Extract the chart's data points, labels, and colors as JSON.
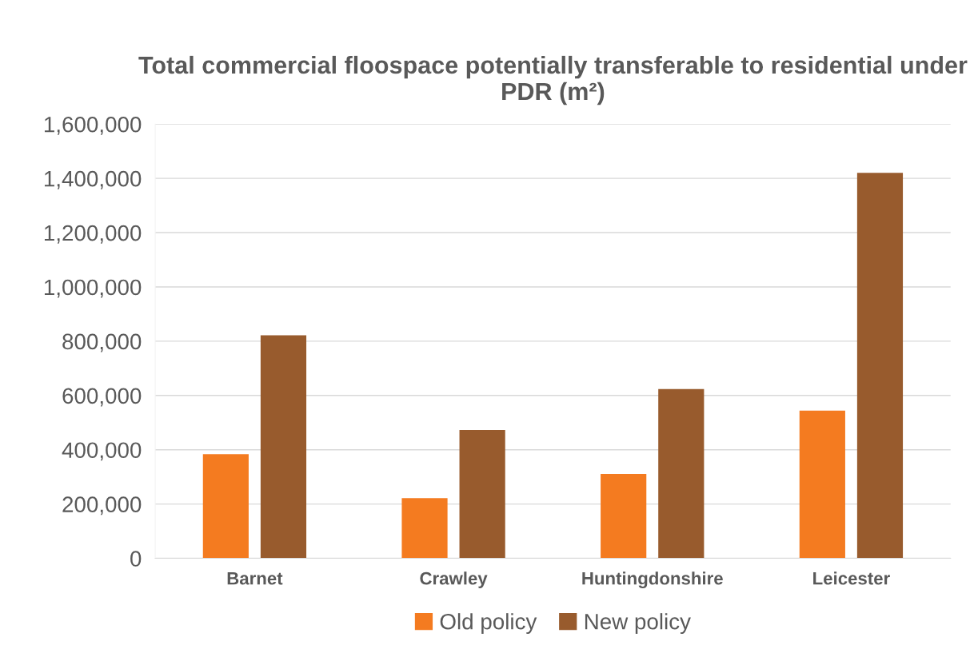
{
  "chart_data": {
    "type": "bar",
    "title": "Total commercial floospace potentially transferable to residential under PDR (m²)",
    "categories": [
      "Barnet",
      "Crawley",
      "Huntingdonshire",
      "Leicester"
    ],
    "series": [
      {
        "name": "Old policy",
        "color": "#f47b20",
        "values": [
          384000,
          222000,
          311000,
          544000
        ]
      },
      {
        "name": "New policy",
        "color": "#985b2d",
        "values": [
          822000,
          473000,
          624000,
          1420000
        ]
      }
    ],
    "ylim": [
      0,
      1600000
    ],
    "yticks": [
      {
        "value": 0,
        "label": "0"
      },
      {
        "value": 200000,
        "label": "200,000"
      },
      {
        "value": 400000,
        "label": "400,000"
      },
      {
        "value": 600000,
        "label": "600,000"
      },
      {
        "value": 800000,
        "label": "800,000"
      },
      {
        "value": 1000000,
        "label": "1,000,000"
      },
      {
        "value": 1200000,
        "label": "1,200,000"
      },
      {
        "value": 1400000,
        "label": "1,400,000"
      },
      {
        "value": 1600000,
        "label": "1,600,000"
      }
    ],
    "grid": "y",
    "legend": "bottom"
  }
}
